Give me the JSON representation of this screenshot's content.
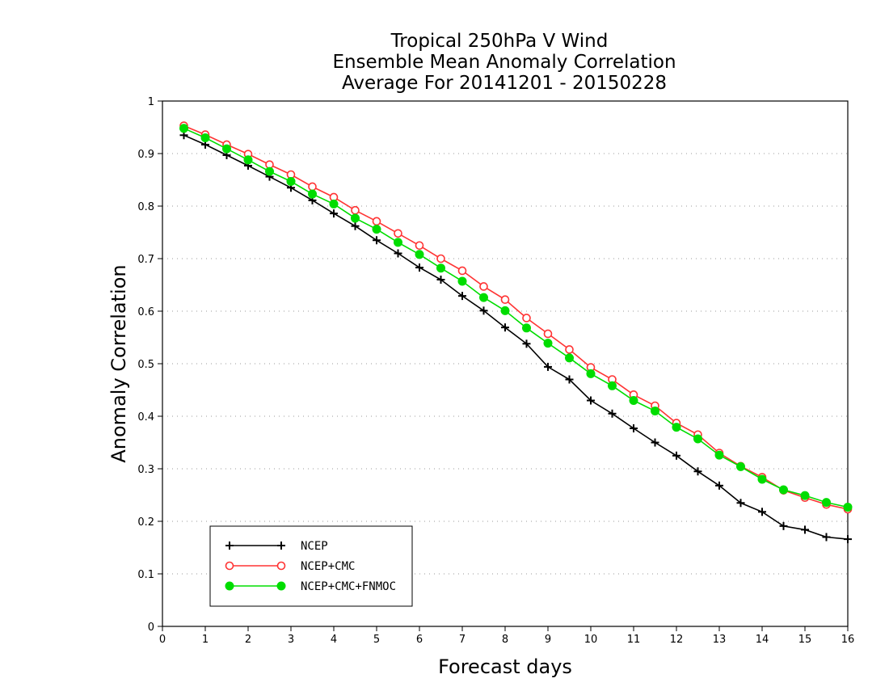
{
  "chart_data": {
    "type": "line",
    "title": [
      "Tropical 250hPa V Wind",
      "Ensemble Mean Anomaly Correlation",
      "Average For 20141201 - 20150228"
    ],
    "xlabel": "Forecast days",
    "ylabel": "Anomaly Correlation",
    "xlim": [
      0,
      16
    ],
    "ylim": [
      0,
      1
    ],
    "xticks": [
      "0",
      "1",
      "2",
      "3",
      "4",
      "5",
      "6",
      "7",
      "8",
      "9",
      "10",
      "11",
      "12",
      "13",
      "14",
      "15",
      "16"
    ],
    "yticks": [
      "0",
      "0.1",
      "0.2",
      "0.3",
      "0.4",
      "0.5",
      "0.6",
      "0.7",
      "0.8",
      "0.9",
      "1"
    ],
    "grid": true,
    "legend_position": "bottom-left",
    "x": [
      0.5,
      1,
      1.5,
      2,
      2.5,
      3,
      3.5,
      4,
      4.5,
      5,
      5.5,
      6,
      6.5,
      7,
      7.5,
      8,
      8.5,
      9,
      9.5,
      10,
      10.5,
      11,
      11.5,
      12,
      12.5,
      13,
      13.5,
      14,
      14.5,
      15,
      15.5,
      16
    ],
    "series": [
      {
        "name": "NCEP",
        "color": "#000000",
        "marker": "plus",
        "values": [
          0.935,
          0.917,
          0.897,
          0.877,
          0.856,
          0.835,
          0.811,
          0.786,
          0.762,
          0.735,
          0.71,
          0.683,
          0.66,
          0.629,
          0.601,
          0.569,
          0.538,
          0.494,
          0.47,
          0.43,
          0.405,
          0.377,
          0.35,
          0.325,
          0.295,
          0.268,
          0.235,
          0.218,
          0.191,
          0.184,
          0.17,
          0.166
        ]
      },
      {
        "name": "NCEP+CMC",
        "color": "#ff3333",
        "marker": "open-circle",
        "values": [
          0.953,
          0.936,
          0.917,
          0.899,
          0.879,
          0.86,
          0.837,
          0.817,
          0.792,
          0.771,
          0.748,
          0.725,
          0.7,
          0.677,
          0.647,
          0.622,
          0.587,
          0.557,
          0.527,
          0.493,
          0.47,
          0.441,
          0.42,
          0.387,
          0.365,
          0.33,
          0.305,
          0.284,
          0.259,
          0.245,
          0.232,
          0.223
        ]
      },
      {
        "name": "NCEP+CMC+FNMOC",
        "color": "#00dd00",
        "marker": "filled-circle",
        "values": [
          0.948,
          0.93,
          0.909,
          0.888,
          0.866,
          0.847,
          0.823,
          0.804,
          0.777,
          0.756,
          0.731,
          0.708,
          0.682,
          0.657,
          0.626,
          0.601,
          0.568,
          0.539,
          0.511,
          0.481,
          0.458,
          0.43,
          0.41,
          0.379,
          0.357,
          0.326,
          0.304,
          0.28,
          0.26,
          0.249,
          0.236,
          0.227
        ]
      }
    ]
  }
}
